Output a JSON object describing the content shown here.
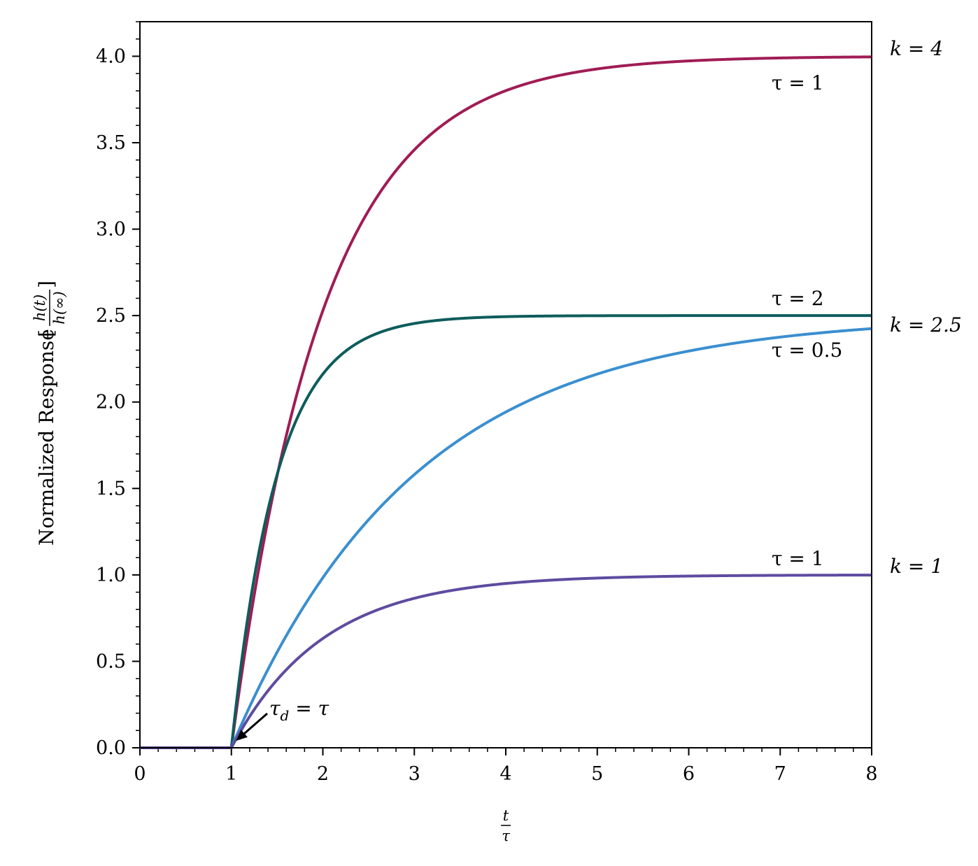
{
  "chart_data": {
    "type": "line",
    "xlabel": {
      "numerator": "t",
      "denominator": "τ"
    },
    "ylabel": {
      "text": "Normalized Response",
      "numerator": "h(t)",
      "denominator": "h(∞)"
    },
    "xlim": [
      0,
      8
    ],
    "ylim": [
      0,
      4.2
    ],
    "xticks": [
      "0",
      "1",
      "2",
      "3",
      "4",
      "5",
      "6",
      "7",
      "8"
    ],
    "yticks": [
      "0.0",
      "0.5",
      "1.0",
      "1.5",
      "2.0",
      "2.5",
      "3.0",
      "3.5",
      "4.0"
    ],
    "grid": false,
    "delay": 1,
    "series": [
      {
        "k": 4,
        "tau": 1,
        "color": "#A01C55",
        "label": "τ = 1"
      },
      {
        "k": 2.5,
        "tau": 2,
        "color": "#0E5C5C",
        "label": "τ = 2"
      },
      {
        "k": 2.5,
        "tau": 0.5,
        "color": "#3A8FD0",
        "label": "τ = 0.5"
      },
      {
        "k": 1,
        "tau": 1,
        "color": "#5F4BA0",
        "label": "τ = 1"
      }
    ],
    "k_labels": [
      "k = 4",
      "k = 2.5",
      "k = 1"
    ],
    "annotation": {
      "text": "τd = τ",
      "main": "τ",
      "sub": "d",
      "rest": " = τ",
      "x": 1.05,
      "y": 0.04
    }
  }
}
